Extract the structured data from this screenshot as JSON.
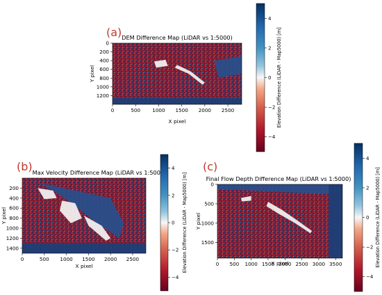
{
  "panels": [
    {
      "letter": "(a)",
      "chart_data": {
        "type": "heatmap",
        "title": "DEM Difference Map (LiDAR vs 1:5000)",
        "xlabel": "X pixel",
        "ylabel": "Y pixel",
        "xlim": [
          0,
          2800
        ],
        "ylim": [
          1400,
          0
        ],
        "xticks": [
          0,
          500,
          1000,
          1500,
          2000,
          2500
        ],
        "yticks": [
          0,
          200,
          400,
          600,
          800,
          1000,
          1200
        ],
        "colorbar": {
          "label": "Elevation Difference (LiDAR - Map5000) [m]",
          "range": [
            -5,
            5
          ],
          "ticks": [
            4,
            2,
            0,
            -2,
            -4
          ]
        },
        "colormap": "RdBu"
      }
    },
    {
      "letter": "(b)",
      "chart_data": {
        "type": "heatmap",
        "title": "Max Velocity Difference Map (LiDAR vs 1:5000)",
        "xlabel": "X pixel",
        "ylabel": "Y pixel",
        "xlim": [
          0,
          2800
        ],
        "ylim": [
          1500,
          0
        ],
        "xticks": [
          0,
          500,
          1000,
          1500,
          2000,
          2500
        ],
        "yticks": [
          200,
          400,
          600,
          800,
          1000,
          1200,
          1400
        ],
        "colorbar": {
          "label": "Elevation Difference (LiDAR - Map5000) [m]",
          "range": [
            -5,
            5
          ],
          "ticks": [
            4,
            2,
            0,
            -2,
            -4
          ]
        },
        "colormap": "RdBu"
      }
    },
    {
      "letter": "(c)",
      "chart_data": {
        "type": "heatmap",
        "title": "Final Flow Depth Difference Map (LiDAR vs 1:5000)",
        "xlabel": "X pixel",
        "ylabel": "Y pixel",
        "xlim": [
          0,
          3700
        ],
        "ylim": [
          1900,
          0
        ],
        "xticks": [
          0,
          500,
          1000,
          1500,
          2000,
          2500,
          3000,
          3500
        ],
        "yticks": [
          0,
          500,
          1000,
          1500
        ],
        "colorbar": {
          "label": "Elevation Difference (LiDAR - Map5000) [m]",
          "range": [
            -5,
            5
          ],
          "ticks": [
            4,
            2,
            0,
            -2,
            -4
          ]
        },
        "colormap": "RdBu"
      }
    }
  ],
  "colors": {
    "neg": "#67001f",
    "mid": "#f7f7f7",
    "pos": "#053061",
    "letter": "#c0392b"
  }
}
